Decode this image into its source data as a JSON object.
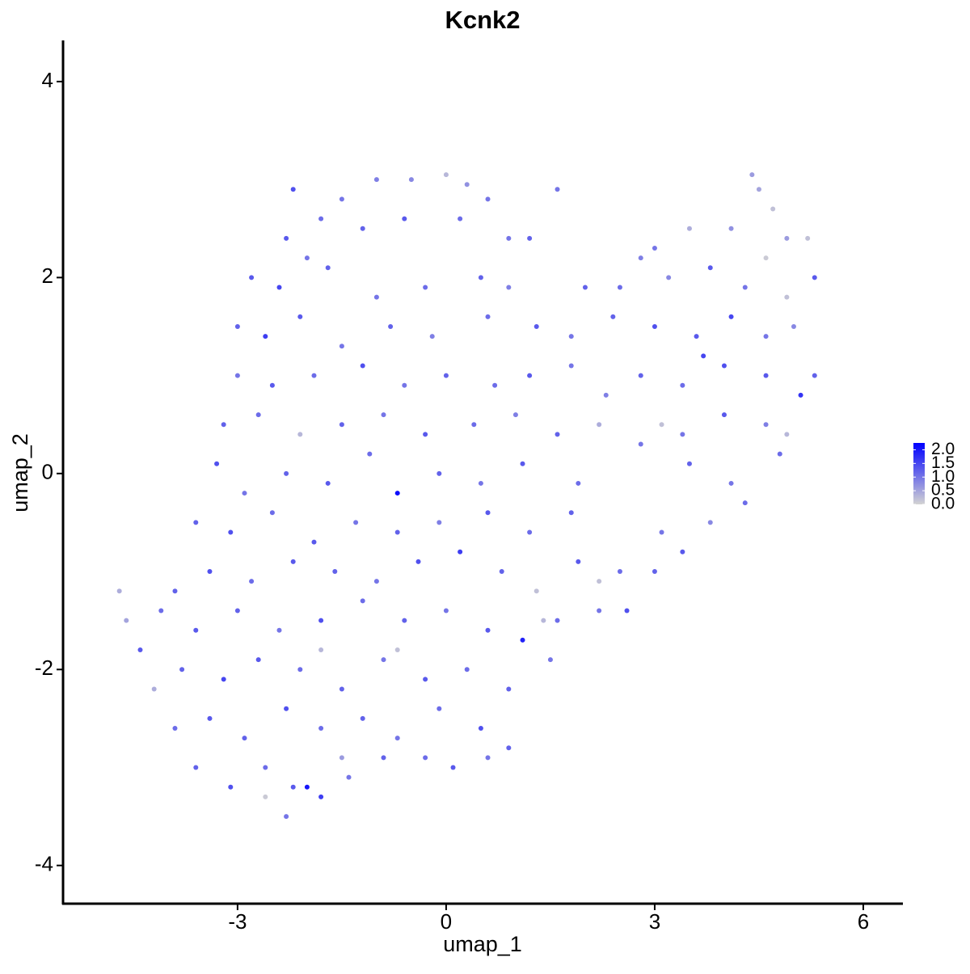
{
  "chart_data": {
    "type": "scatter",
    "title": "Kcnk2",
    "xlabel": "umap_1",
    "ylabel": "umap_2",
    "xlim": [
      -5.51,
      6.57
    ],
    "ylim": [
      -4.39,
      4.42
    ],
    "xticks": [
      -3,
      0,
      3,
      6
    ],
    "yticks": [
      -4,
      -2,
      0,
      2,
      4
    ],
    "color_low": "#d3d3d3",
    "color_high": "#0000ff",
    "colorlim": [
      0,
      2.25
    ],
    "colorticks": [
      {
        "value": 0,
        "label": "0.0"
      },
      {
        "value": 0.5,
        "label": "0.5"
      },
      {
        "value": 1,
        "label": "1.0"
      },
      {
        "value": 1.5,
        "label": "1.5"
      },
      {
        "value": 2,
        "label": "2.0"
      }
    ],
    "x": [
      -2.2,
      -1.5,
      -1,
      -0.5,
      0,
      0.3,
      0.6,
      -1.8,
      1.6,
      4.4,
      4.7,
      4.5,
      -2.3,
      -2.0,
      -1.2,
      -0.6,
      0.2,
      0.9,
      1.2,
      3.5,
      4.1,
      4.9,
      5.2,
      4.6,
      3.0,
      -2.8,
      -2.4,
      -1.7,
      -1.0,
      -0.3,
      0.5,
      0.9,
      2.0,
      2.5,
      3.2,
      3.8,
      4.3,
      4.9,
      5.3,
      2.8,
      -3.0,
      -2.6,
      -2.1,
      -1.5,
      -0.8,
      -0.2,
      0.6,
      1.3,
      1.8,
      2.4,
      3.0,
      3.6,
      4.1,
      4.6,
      5.0,
      -3.0,
      -2.5,
      -1.9,
      -1.2,
      -0.6,
      0.0,
      0.7,
      1.2,
      1.8,
      2.3,
      2.8,
      3.4,
      4.0,
      4.6,
      5.3,
      3.7,
      -3.2,
      -2.7,
      -2.1,
      -1.5,
      -0.9,
      -0.3,
      0.4,
      1.0,
      1.6,
      2.2,
      3.4,
      4.0,
      4.6,
      5.1,
      3.1,
      -3.3,
      -2.9,
      -2.3,
      -1.7,
      -1.1,
      -0.7,
      -0.1,
      0.5,
      1.1,
      1.9,
      3.5,
      4.1,
      4.8,
      4.9,
      2.8,
      -3.6,
      -3.1,
      -2.5,
      -1.9,
      -1.3,
      -0.7,
      -0.1,
      0.6,
      1.2,
      1.8,
      3.1,
      3.8,
      4.3,
      -3.9,
      -3.4,
      -2.8,
      -2.2,
      -1.6,
      -1.0,
      -0.4,
      0.2,
      0.8,
      1.3,
      1.9,
      2.5,
      2.2,
      3.0,
      3.4,
      -4.7,
      -4.6,
      -4.1,
      -3.6,
      -3.0,
      -2.4,
      -1.8,
      -1.2,
      -0.6,
      0.0,
      0.6,
      1.1,
      1.6,
      2.2,
      2.6,
      -4.4,
      1.4,
      -4.2,
      -3.8,
      -3.2,
      -2.7,
      -2.1,
      -1.5,
      -0.9,
      -0.3,
      0.3,
      0.9,
      1.5,
      -0.7,
      -1.8,
      -3.9,
      -3.4,
      -2.9,
      -2.3,
      -1.8,
      -1.2,
      -0.7,
      -0.1,
      0.5,
      0.9,
      -1.5,
      -3.6,
      -3.1,
      -2.6,
      -2.2,
      -1.8,
      -1.4,
      -0.9,
      -0.3,
      0.1,
      0.6,
      -2.6,
      -2.3,
      -2.0
    ],
    "y": [
      2.9,
      2.8,
      3.0,
      3.0,
      3.05,
      2.95,
      2.8,
      2.6,
      2.9,
      3.05,
      2.7,
      2.9,
      2.4,
      2.2,
      2.5,
      2.6,
      2.6,
      2.4,
      2.4,
      2.5,
      2.5,
      2.4,
      2.4,
      2.2,
      2.3,
      2.0,
      1.9,
      2.1,
      1.8,
      1.9,
      2.0,
      1.9,
      1.9,
      1.9,
      2.0,
      2.1,
      1.9,
      1.8,
      2.0,
      2.2,
      1.5,
      1.4,
      1.6,
      1.3,
      1.5,
      1.4,
      1.6,
      1.5,
      1.4,
      1.6,
      1.5,
      1.4,
      1.6,
      1.4,
      1.5,
      1.0,
      0.9,
      1.0,
      1.1,
      0.9,
      1.0,
      0.9,
      1.0,
      1.1,
      0.8,
      1.0,
      0.9,
      1.1,
      1.0,
      1.0,
      1.2,
      0.5,
      0.6,
      0.4,
      0.5,
      0.6,
      0.4,
      0.5,
      0.6,
      0.4,
      0.5,
      0.4,
      0.6,
      0.5,
      0.8,
      0.5,
      0.1,
      -0.2,
      0.0,
      -0.1,
      0.2,
      -0.2,
      0.0,
      -0.1,
      0.1,
      -0.1,
      0.1,
      -0.1,
      0.2,
      0.4,
      0.3,
      -0.5,
      -0.6,
      -0.4,
      -0.7,
      -0.5,
      -0.6,
      -0.5,
      -0.4,
      -0.6,
      -0.4,
      -0.6,
      -0.5,
      -0.3,
      -1.2,
      -1.0,
      -1.1,
      -0.9,
      -1.0,
      -1.1,
      -0.9,
      -0.8,
      -1.0,
      -1.2,
      -0.9,
      -1.0,
      -1.1,
      -1.0,
      -0.8,
      -1.2,
      -1.5,
      -1.4,
      -1.6,
      -1.4,
      -1.6,
      -1.5,
      -1.3,
      -1.5,
      -1.4,
      -1.6,
      -1.7,
      -1.5,
      -1.4,
      -1.4,
      -1.8,
      -1.5,
      -2.2,
      -2.0,
      -2.1,
      -1.9,
      -2.0,
      -2.2,
      -1.9,
      -2.1,
      -2.0,
      -2.2,
      -1.9,
      -1.8,
      -1.8,
      -2.6,
      -2.5,
      -2.7,
      -2.4,
      -2.6,
      -2.5,
      -2.7,
      -2.4,
      -2.6,
      -2.8,
      -2.9,
      -3.0,
      -3.2,
      -3.0,
      -3.2,
      -3.3,
      -3.1,
      -2.9,
      -2.9,
      -3.0,
      -2.9,
      -3.3,
      -3.5,
      -3.2
    ],
    "values": [
      1.4,
      1.0,
      0.9,
      0.8,
      0.3,
      0.7,
      1.0,
      1.1,
      1.0,
      0.6,
      0.2,
      0.5,
      1.3,
      1.0,
      1.2,
      1.3,
      1.1,
      1.0,
      1.2,
      0.4,
      0.7,
      0.6,
      0.2,
      0.1,
      1.0,
      1.3,
      1.5,
      1.2,
      1.0,
      1.1,
      1.2,
      0.9,
      1.2,
      1.1,
      0.8,
      1.3,
      1.0,
      0.2,
      1.3,
      0.9,
      1.2,
      1.6,
      1.3,
      1.0,
      1.2,
      0.9,
      1.1,
      1.3,
      1.0,
      1.2,
      1.4,
      1.3,
      1.5,
      1.0,
      0.8,
      1.0,
      1.3,
      1.1,
      1.4,
      1.0,
      1.2,
      1.1,
      1.3,
      1.0,
      0.9,
      1.2,
      1.1,
      1.4,
      1.3,
      1.2,
      1.5,
      1.2,
      1.1,
      0.3,
      1.2,
      1.0,
      1.3,
      1.1,
      0.9,
      1.2,
      0.4,
      1.0,
      1.3,
      0.9,
      1.7,
      0.2,
      1.4,
      1.0,
      1.2,
      1.3,
      1.1,
      2.1,
      1.2,
      1.0,
      1.3,
      1.1,
      1.2,
      1.0,
      1.1,
      0.3,
      1.0,
      1.2,
      1.4,
      1.1,
      1.3,
      1.0,
      1.2,
      0.9,
      1.3,
      1.1,
      1.2,
      1.0,
      0.8,
      1.1,
      1.2,
      1.4,
      1.1,
      1.3,
      1.2,
      1.0,
      1.4,
      1.6,
      1.2,
      0.2,
      1.3,
      1.1,
      0.2,
      1.2,
      1.3,
      0.4,
      0.5,
      1.1,
      1.3,
      1.2,
      1.0,
      1.4,
      1.1,
      1.2,
      1.0,
      1.3,
      1.9,
      1.1,
      1.0,
      1.4,
      1.3,
      0.3,
      0.4,
      1.2,
      1.5,
      1.3,
      1.1,
      1.2,
      1.0,
      1.3,
      1.1,
      1.2,
      1.0,
      0.2,
      0.3,
      1.1,
      1.3,
      1.2,
      1.4,
      1.1,
      1.2,
      1.0,
      1.1,
      1.4,
      1.2,
      0.6,
      1.2,
      1.4,
      1.1,
      1.3,
      1.6,
      1.0,
      1.2,
      1.1,
      1.3,
      1.0,
      0.1,
      1.0,
      2.0
    ]
  }
}
